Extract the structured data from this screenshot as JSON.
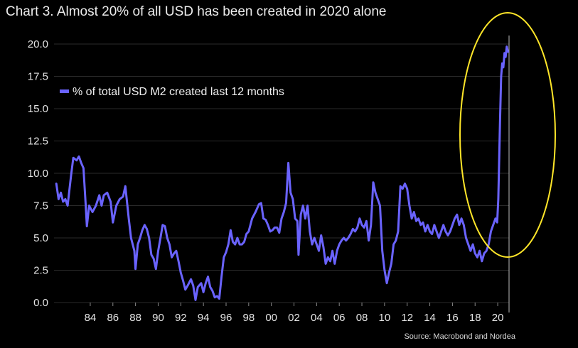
{
  "title": "Chart 3. Almost 20% of all USD has been created in 2020 alone",
  "source": "Source: Macrobond and Nordea",
  "colors": {
    "line": "#6a63ff",
    "highlight": "#ffe629",
    "background": "#000000",
    "grid": "#2a2a2a"
  },
  "chart_data": {
    "type": "line",
    "title": "Chart 3. Almost 20% of all USD has been created in 2020 alone",
    "xlabel": "",
    "ylabel": "",
    "xlim": [
      1980.8,
      2021.0
    ],
    "ylim": [
      0,
      20
    ],
    "y_ticks": [
      "0.0",
      "2.5",
      "5.0",
      "7.5",
      "10.0",
      "12.5",
      "15.0",
      "17.5",
      "20.0"
    ],
    "x_ticks": [
      {
        "label": "84",
        "x": 1984
      },
      {
        "label": "86",
        "x": 1986
      },
      {
        "label": "88",
        "x": 1988
      },
      {
        "label": "90",
        "x": 1990
      },
      {
        "label": "92",
        "x": 1992
      },
      {
        "label": "94",
        "x": 1994
      },
      {
        "label": "96",
        "x": 1996
      },
      {
        "label": "98",
        "x": 1998
      },
      {
        "label": "00",
        "x": 2000
      },
      {
        "label": "02",
        "x": 2002
      },
      {
        "label": "04",
        "x": 2004
      },
      {
        "label": "06",
        "x": 2006
      },
      {
        "label": "08",
        "x": 2008
      },
      {
        "label": "10",
        "x": 2010
      },
      {
        "label": "12",
        "x": 2012
      },
      {
        "label": "14",
        "x": 2014
      },
      {
        "label": "16",
        "x": 2016
      },
      {
        "label": "18",
        "x": 2018
      },
      {
        "label": "20",
        "x": 2020
      }
    ],
    "grid": true,
    "legend_position": "top-left",
    "series": [
      {
        "name": "% of total USD M2 created last 12 months",
        "points": [
          [
            1981.0,
            9.2
          ],
          [
            1981.2,
            8.0
          ],
          [
            1981.4,
            8.5
          ],
          [
            1981.6,
            7.8
          ],
          [
            1981.8,
            8.0
          ],
          [
            1982.0,
            7.5
          ],
          [
            1982.3,
            9.8
          ],
          [
            1982.5,
            11.2
          ],
          [
            1982.8,
            11.0
          ],
          [
            1983.0,
            11.3
          ],
          [
            1983.2,
            10.8
          ],
          [
            1983.4,
            10.4
          ],
          [
            1983.6,
            7.5
          ],
          [
            1983.7,
            5.9
          ],
          [
            1983.9,
            7.5
          ],
          [
            1984.2,
            7.0
          ],
          [
            1984.5,
            7.5
          ],
          [
            1984.8,
            8.3
          ],
          [
            1985.0,
            7.5
          ],
          [
            1985.2,
            8.3
          ],
          [
            1985.5,
            8.5
          ],
          [
            1985.8,
            7.8
          ],
          [
            1986.0,
            6.2
          ],
          [
            1986.3,
            7.5
          ],
          [
            1986.6,
            8.0
          ],
          [
            1986.9,
            8.2
          ],
          [
            1987.1,
            9.0
          ],
          [
            1987.4,
            6.5
          ],
          [
            1987.6,
            5.0
          ],
          [
            1987.9,
            4.0
          ],
          [
            1988.0,
            2.6
          ],
          [
            1988.2,
            4.5
          ],
          [
            1988.4,
            5.0
          ],
          [
            1988.6,
            5.6
          ],
          [
            1988.8,
            6.0
          ],
          [
            1989.0,
            5.7
          ],
          [
            1989.2,
            5.0
          ],
          [
            1989.4,
            3.7
          ],
          [
            1989.6,
            3.4
          ],
          [
            1989.8,
            2.6
          ],
          [
            1990.0,
            4.0
          ],
          [
            1990.2,
            5.0
          ],
          [
            1990.4,
            6.0
          ],
          [
            1990.6,
            5.9
          ],
          [
            1990.8,
            5.0
          ],
          [
            1991.0,
            4.5
          ],
          [
            1991.2,
            3.5
          ],
          [
            1991.4,
            3.8
          ],
          [
            1991.6,
            4.0
          ],
          [
            1991.8,
            3.2
          ],
          [
            1992.0,
            2.3
          ],
          [
            1992.2,
            1.7
          ],
          [
            1992.4,
            1.0
          ],
          [
            1992.6,
            1.3
          ],
          [
            1992.9,
            1.8
          ],
          [
            1993.1,
            1.3
          ],
          [
            1993.3,
            0.2
          ],
          [
            1993.5,
            1.2
          ],
          [
            1993.8,
            1.5
          ],
          [
            1994.0,
            0.8
          ],
          [
            1994.2,
            1.5
          ],
          [
            1994.4,
            2.0
          ],
          [
            1994.6,
            1.2
          ],
          [
            1994.8,
            0.9
          ],
          [
            1995.0,
            0.4
          ],
          [
            1995.2,
            0.5
          ],
          [
            1995.4,
            0.3
          ],
          [
            1995.6,
            2.0
          ],
          [
            1995.8,
            3.5
          ],
          [
            1996.0,
            3.9
          ],
          [
            1996.2,
            4.5
          ],
          [
            1996.4,
            5.6
          ],
          [
            1996.6,
            4.7
          ],
          [
            1996.8,
            4.5
          ],
          [
            1997.0,
            5.0
          ],
          [
            1997.2,
            4.5
          ],
          [
            1997.4,
            4.5
          ],
          [
            1997.6,
            4.7
          ],
          [
            1997.8,
            5.3
          ],
          [
            1998.0,
            5.5
          ],
          [
            1998.3,
            6.5
          ],
          [
            1998.6,
            7.0
          ],
          [
            1998.9,
            7.6
          ],
          [
            1999.1,
            7.7
          ],
          [
            1999.3,
            6.5
          ],
          [
            1999.5,
            6.4
          ],
          [
            1999.7,
            6.0
          ],
          [
            1999.9,
            5.5
          ],
          [
            2000.1,
            5.6
          ],
          [
            2000.3,
            5.8
          ],
          [
            2000.5,
            5.8
          ],
          [
            2000.7,
            5.4
          ],
          [
            2000.9,
            6.5
          ],
          [
            2001.1,
            7.0
          ],
          [
            2001.3,
            7.7
          ],
          [
            2001.5,
            10.8
          ],
          [
            2001.7,
            8.5
          ],
          [
            2001.9,
            8.0
          ],
          [
            2002.1,
            6.5
          ],
          [
            2002.3,
            6.3
          ],
          [
            2002.4,
            3.7
          ],
          [
            2002.6,
            6.8
          ],
          [
            2002.8,
            7.5
          ],
          [
            2003.0,
            6.5
          ],
          [
            2003.2,
            7.5
          ],
          [
            2003.4,
            5.5
          ],
          [
            2003.6,
            4.5
          ],
          [
            2003.8,
            5.0
          ],
          [
            2004.0,
            4.5
          ],
          [
            2004.2,
            4.0
          ],
          [
            2004.4,
            5.2
          ],
          [
            2004.6,
            4.3
          ],
          [
            2004.8,
            3.0
          ],
          [
            2005.0,
            3.5
          ],
          [
            2005.2,
            3.2
          ],
          [
            2005.4,
            4.0
          ],
          [
            2005.6,
            3.0
          ],
          [
            2005.8,
            4.0
          ],
          [
            2006.0,
            4.5
          ],
          [
            2006.2,
            4.8
          ],
          [
            2006.4,
            5.0
          ],
          [
            2006.6,
            4.8
          ],
          [
            2006.8,
            5.0
          ],
          [
            2007.0,
            5.3
          ],
          [
            2007.2,
            5.7
          ],
          [
            2007.4,
            5.5
          ],
          [
            2007.6,
            5.8
          ],
          [
            2007.8,
            6.5
          ],
          [
            2008.0,
            6.0
          ],
          [
            2008.2,
            5.8
          ],
          [
            2008.4,
            6.3
          ],
          [
            2008.6,
            4.8
          ],
          [
            2008.8,
            6.0
          ],
          [
            2009.0,
            9.3
          ],
          [
            2009.2,
            8.5
          ],
          [
            2009.4,
            8.0
          ],
          [
            2009.6,
            7.5
          ],
          [
            2009.8,
            4.0
          ],
          [
            2010.0,
            2.5
          ],
          [
            2010.2,
            1.5
          ],
          [
            2010.4,
            2.3
          ],
          [
            2010.6,
            3.0
          ],
          [
            2010.8,
            4.5
          ],
          [
            2011.0,
            4.8
          ],
          [
            2011.2,
            5.5
          ],
          [
            2011.4,
            9.0
          ],
          [
            2011.6,
            8.8
          ],
          [
            2011.8,
            9.2
          ],
          [
            2012.0,
            8.8
          ],
          [
            2012.2,
            7.5
          ],
          [
            2012.4,
            6.5
          ],
          [
            2012.6,
            7.0
          ],
          [
            2012.8,
            6.3
          ],
          [
            2013.0,
            6.5
          ],
          [
            2013.2,
            6.0
          ],
          [
            2013.4,
            6.2
          ],
          [
            2013.6,
            5.5
          ],
          [
            2013.8,
            6.0
          ],
          [
            2014.0,
            5.5
          ],
          [
            2014.2,
            5.3
          ],
          [
            2014.4,
            6.0
          ],
          [
            2014.6,
            5.5
          ],
          [
            2014.8,
            5.0
          ],
          [
            2015.0,
            5.5
          ],
          [
            2015.2,
            6.0
          ],
          [
            2015.4,
            5.5
          ],
          [
            2015.6,
            5.2
          ],
          [
            2015.8,
            5.5
          ],
          [
            2016.0,
            6.0
          ],
          [
            2016.2,
            6.5
          ],
          [
            2016.4,
            6.8
          ],
          [
            2016.6,
            6.0
          ],
          [
            2016.8,
            6.5
          ],
          [
            2017.0,
            6.0
          ],
          [
            2017.2,
            5.0
          ],
          [
            2017.4,
            4.5
          ],
          [
            2017.6,
            4.0
          ],
          [
            2017.8,
            4.5
          ],
          [
            2018.0,
            3.8
          ],
          [
            2018.2,
            3.5
          ],
          [
            2018.4,
            4.0
          ],
          [
            2018.6,
            3.2
          ],
          [
            2018.8,
            3.8
          ],
          [
            2019.0,
            4.0
          ],
          [
            2019.2,
            4.5
          ],
          [
            2019.4,
            5.5
          ],
          [
            2019.6,
            6.0
          ],
          [
            2019.8,
            6.5
          ],
          [
            2019.95,
            6.2
          ],
          [
            2020.05,
            8.0
          ],
          [
            2020.2,
            14.0
          ],
          [
            2020.3,
            17.5
          ],
          [
            2020.4,
            18.5
          ],
          [
            2020.5,
            18.2
          ],
          [
            2020.6,
            19.3
          ],
          [
            2020.7,
            19.0
          ],
          [
            2020.8,
            19.8
          ],
          [
            2020.9,
            19.4
          ]
        ]
      }
    ]
  }
}
